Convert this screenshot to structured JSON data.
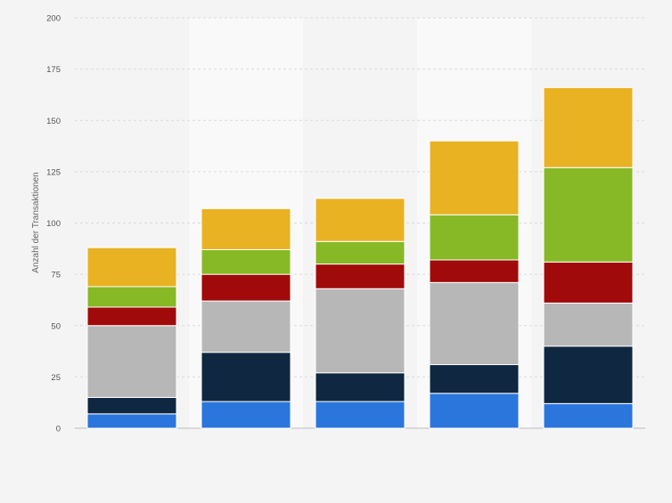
{
  "chart_data": {
    "type": "bar",
    "stacked": true,
    "title": "",
    "xlabel": "",
    "ylabel": "Anzahl der Transaktionen",
    "ylim": [
      0,
      200
    ],
    "yticks": [
      0,
      25,
      50,
      75,
      100,
      125,
      150,
      175,
      200
    ],
    "grid": true,
    "categories": [
      "",
      "",
      "",
      "",
      ""
    ],
    "series": [
      {
        "color": "#2a76dd",
        "values": [
          7,
          13,
          13,
          17,
          12
        ]
      },
      {
        "color": "#0f2740",
        "values": [
          8,
          24,
          14,
          14,
          28
        ]
      },
      {
        "color": "#b7b7b7",
        "values": [
          35,
          25,
          41,
          40,
          21
        ]
      },
      {
        "color": "#a10a0a",
        "values": [
          9,
          13,
          12,
          11,
          20
        ]
      },
      {
        "color": "#86b925",
        "values": [
          10,
          12,
          11,
          22,
          46
        ]
      },
      {
        "color": "#e8b223",
        "values": [
          19,
          20,
          21,
          36,
          39
        ]
      }
    ]
  }
}
